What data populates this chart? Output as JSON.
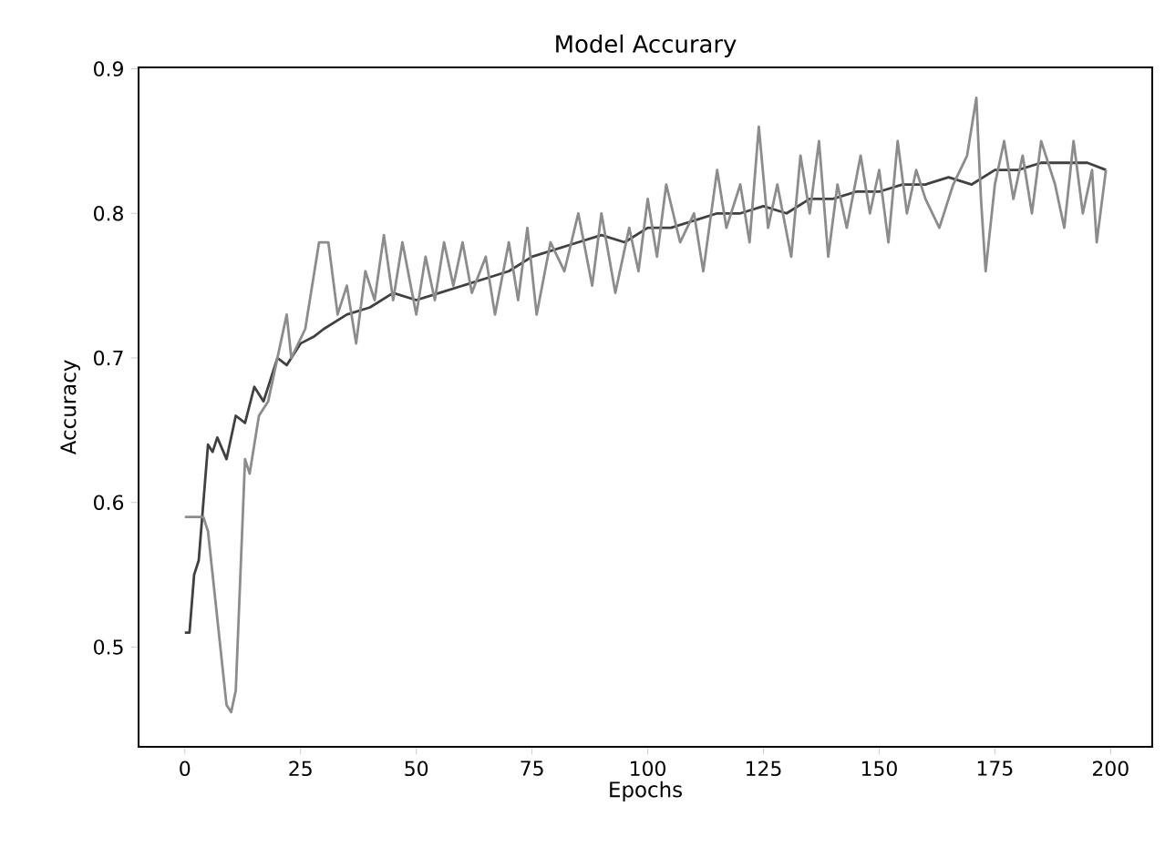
{
  "chart_data": {
    "type": "line",
    "title": "Model Accurary",
    "xlabel": "Epochs",
    "ylabel": "Accuracy",
    "xlim": [
      -10,
      209
    ],
    "ylim": [
      0.431,
      0.901
    ],
    "xticks": [
      0,
      25,
      50,
      75,
      100,
      125,
      150,
      175,
      200
    ],
    "yticks": [
      {
        "value": 0.5,
        "label": "0.5"
      },
      {
        "value": 0.6,
        "label": "0.6"
      },
      {
        "value": 0.7,
        "label": "0.7"
      },
      {
        "value": 0.8,
        "label": "0.8"
      },
      {
        "value": 0.9,
        "label": "0.9"
      }
    ],
    "grid": false,
    "legend": false,
    "marker": "none",
    "line_style": "solid",
    "series": [
      {
        "color": "#404040",
        "x": [
          0,
          1,
          2,
          3,
          5,
          6,
          7,
          9,
          11,
          13,
          15,
          17,
          20,
          22,
          25,
          28,
          30,
          35,
          40,
          45,
          50,
          55,
          60,
          65,
          70,
          75,
          80,
          85,
          90,
          95,
          100,
          105,
          110,
          115,
          120,
          125,
          130,
          135,
          140,
          145,
          150,
          155,
          160,
          165,
          170,
          175,
          180,
          185,
          190,
          195,
          199
        ],
        "values": [
          0.51,
          0.51,
          0.55,
          0.56,
          0.64,
          0.635,
          0.645,
          0.63,
          0.66,
          0.655,
          0.68,
          0.67,
          0.7,
          0.695,
          0.71,
          0.715,
          0.72,
          0.73,
          0.735,
          0.745,
          0.74,
          0.745,
          0.75,
          0.755,
          0.76,
          0.77,
          0.775,
          0.78,
          0.785,
          0.78,
          0.79,
          0.79,
          0.795,
          0.8,
          0.8,
          0.805,
          0.8,
          0.81,
          0.81,
          0.815,
          0.815,
          0.82,
          0.82,
          0.825,
          0.82,
          0.83,
          0.83,
          0.835,
          0.835,
          0.835,
          0.83
        ]
      },
      {
        "color": "#8c8c8c",
        "x": [
          0,
          4,
          5,
          7,
          9,
          10,
          11,
          13,
          14,
          16,
          18,
          20,
          22,
          23,
          26,
          29,
          31,
          33,
          35,
          37,
          39,
          41,
          43,
          45,
          47,
          50,
          52,
          54,
          56,
          58,
          60,
          62,
          65,
          67,
          70,
          72,
          74,
          76,
          79,
          82,
          85,
          88,
          90,
          93,
          96,
          98,
          100,
          102,
          104,
          107,
          110,
          112,
          115,
          117,
          120,
          122,
          124,
          126,
          128,
          131,
          133,
          135,
          137,
          139,
          141,
          143,
          146,
          148,
          150,
          152,
          154,
          156,
          158,
          160,
          163,
          166,
          169,
          171,
          172,
          173,
          175,
          177,
          179,
          181,
          183,
          185,
          188,
          190,
          192,
          194,
          196,
          197,
          199
        ],
        "values": [
          0.59,
          0.59,
          0.58,
          0.52,
          0.46,
          0.455,
          0.47,
          0.63,
          0.62,
          0.66,
          0.67,
          0.7,
          0.73,
          0.7,
          0.72,
          0.78,
          0.78,
          0.73,
          0.75,
          0.71,
          0.76,
          0.74,
          0.785,
          0.74,
          0.78,
          0.73,
          0.77,
          0.74,
          0.78,
          0.75,
          0.78,
          0.745,
          0.77,
          0.73,
          0.78,
          0.74,
          0.79,
          0.73,
          0.78,
          0.76,
          0.8,
          0.75,
          0.8,
          0.745,
          0.79,
          0.76,
          0.81,
          0.77,
          0.82,
          0.78,
          0.8,
          0.76,
          0.83,
          0.79,
          0.82,
          0.78,
          0.86,
          0.79,
          0.82,
          0.77,
          0.84,
          0.8,
          0.85,
          0.77,
          0.82,
          0.79,
          0.84,
          0.8,
          0.83,
          0.78,
          0.85,
          0.8,
          0.83,
          0.81,
          0.79,
          0.82,
          0.84,
          0.88,
          0.81,
          0.76,
          0.82,
          0.85,
          0.81,
          0.84,
          0.8,
          0.85,
          0.82,
          0.79,
          0.85,
          0.8,
          0.83,
          0.78,
          0.83
        ]
      }
    ]
  }
}
